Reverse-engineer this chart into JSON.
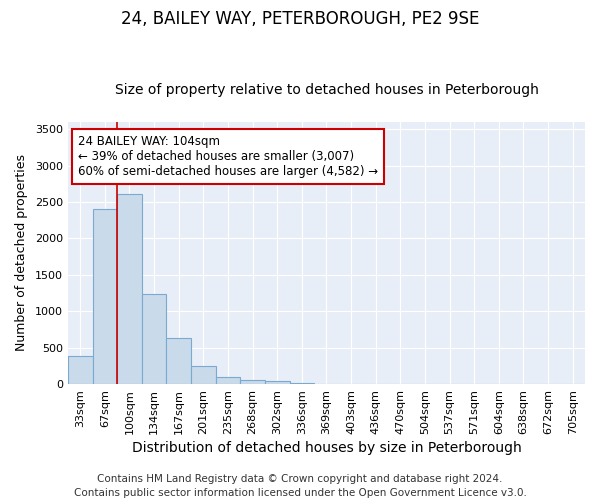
{
  "title": "24, BAILEY WAY, PETERBOROUGH, PE2 9SE",
  "subtitle": "Size of property relative to detached houses in Peterborough",
  "xlabel": "Distribution of detached houses by size in Peterborough",
  "ylabel": "Number of detached properties",
  "categories": [
    "33sqm",
    "67sqm",
    "100sqm",
    "134sqm",
    "167sqm",
    "201sqm",
    "235sqm",
    "268sqm",
    "302sqm",
    "336sqm",
    "369sqm",
    "403sqm",
    "436sqm",
    "470sqm",
    "504sqm",
    "537sqm",
    "571sqm",
    "604sqm",
    "638sqm",
    "672sqm",
    "705sqm"
  ],
  "values": [
    390,
    2400,
    2610,
    1240,
    640,
    255,
    100,
    55,
    50,
    20,
    5,
    5,
    2,
    0,
    0,
    0,
    0,
    0,
    0,
    0,
    0
  ],
  "bar_color": "#c9daea",
  "bar_edge_color": "#7aaad0",
  "red_line_index": 2,
  "ylim": [
    0,
    3600
  ],
  "yticks": [
    0,
    500,
    1000,
    1500,
    2000,
    2500,
    3000,
    3500
  ],
  "annotation_line1": "24 BAILEY WAY: 104sqm",
  "annotation_line2": "← 39% of detached houses are smaller (3,007)",
  "annotation_line3": "60% of semi-detached houses are larger (4,582) →",
  "annotation_box_color": "#ffffff",
  "annotation_box_edge_color": "#cc0000",
  "footer_text": "Contains HM Land Registry data © Crown copyright and database right 2024.\nContains public sector information licensed under the Open Government Licence v3.0.",
  "background_color": "#ffffff",
  "plot_background_color": "#e8eef7",
  "grid_color": "#ffffff",
  "title_fontsize": 12,
  "subtitle_fontsize": 10,
  "xlabel_fontsize": 10,
  "ylabel_fontsize": 9,
  "tick_fontsize": 8,
  "footer_fontsize": 7.5
}
